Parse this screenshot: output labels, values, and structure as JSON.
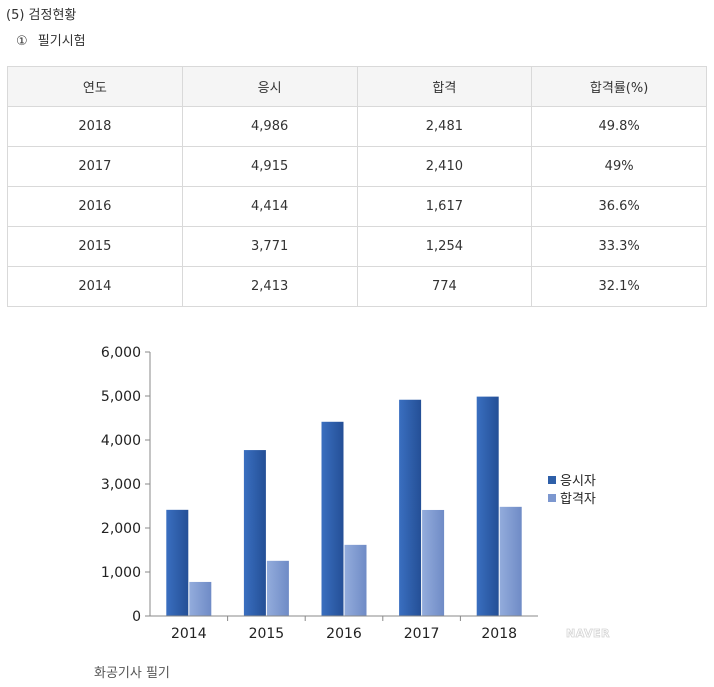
{
  "section_heading": "(5) 검정현황",
  "subsection": {
    "number": "①",
    "label": "필기시험"
  },
  "table": {
    "headers": [
      "연도",
      "응시",
      "합격",
      "합격률(%)"
    ],
    "rows": [
      [
        "2018",
        "4,986",
        "2,481",
        "49.8%"
      ],
      [
        "2017",
        "4,915",
        "2,410",
        "49%"
      ],
      [
        "2016",
        "4,414",
        "1,617",
        "36.6%"
      ],
      [
        "2015",
        "3,771",
        "1,254",
        "33.3%"
      ],
      [
        "2014",
        "2,413",
        "774",
        "32.1%"
      ]
    ]
  },
  "chart_data": {
    "type": "bar",
    "categories": [
      "2014",
      "2015",
      "2016",
      "2017",
      "2018"
    ],
    "series": [
      {
        "name": "응시자",
        "values": [
          2413,
          3771,
          4414,
          4915,
          4986
        ],
        "color": "#2e5fa8"
      },
      {
        "name": "합격자",
        "values": [
          774,
          1254,
          1617,
          2410,
          2481
        ],
        "color": "#7c97cf"
      }
    ],
    "ylim": [
      0,
      6000
    ],
    "yticks": [
      "0",
      "1,000",
      "2,000",
      "3,000",
      "4,000",
      "5,000",
      "6,000"
    ],
    "yticks_values": [
      0,
      1000,
      2000,
      3000,
      4000,
      5000,
      6000
    ],
    "legend_position": "right",
    "grid": false
  },
  "watermark": "NAVER",
  "caption": "화공기사 필기"
}
